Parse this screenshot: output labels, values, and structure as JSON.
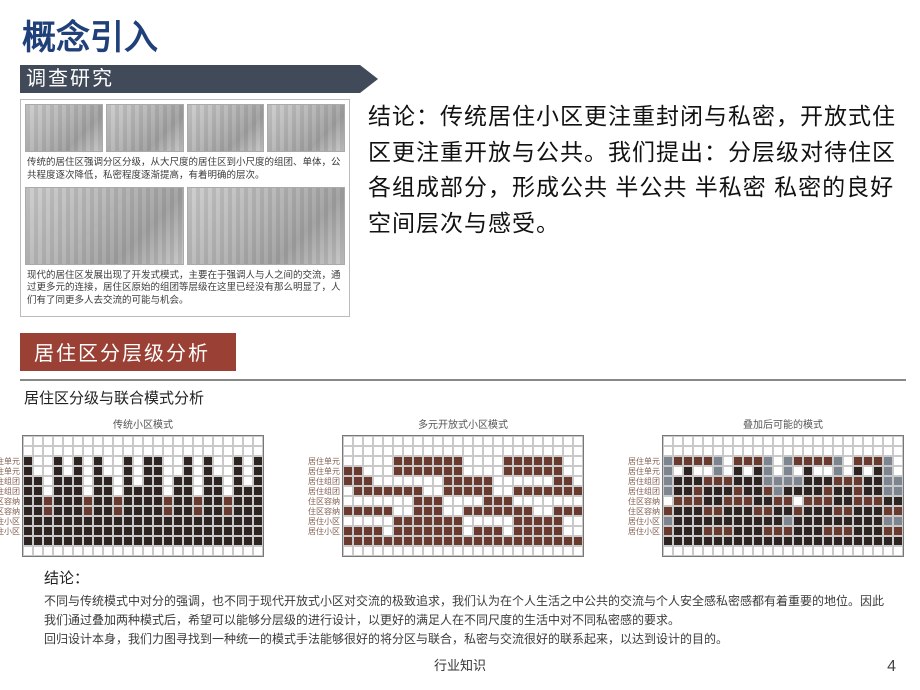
{
  "title": "概念引入",
  "research_label": "调查研究",
  "thumbs": {
    "caption1": "传统的居住区强调分区分级，从大尺度的居住区到小尺度的组团、单体，公共程度逐次降低，私密程度逐渐提高，有着明确的层次。",
    "caption2": "现代的居住区发展出现了开发式模式，主要在于强调人与人之间的交流，通过更多元的连接，居住区原始的组团等层级在这里已经没有那么明显了，人们有了同更多人去交流的可能与机会。"
  },
  "conclusion_text": "结论：传统居住小区更注重封闭与私密，开放式住区更注重开放与公共。我们提出：分层级对待住区各组成部分，形成公共 半公共 半私密 私密的良好空间层次与感受。",
  "section2_label": "居住区分层级分析",
  "analysis_title": "居住区分级与联合模式分析",
  "grid_labels": [
    "传统小区模式",
    "多元开放式小区模式",
    "叠加后可能的模式"
  ],
  "row_tags": [
    "居住单元",
    "居住单元",
    "居住组团",
    "居住组团",
    "住区容纳",
    "住区容纳",
    "居住小区",
    "居住小区"
  ],
  "bottom": {
    "heading": "结论：",
    "p1": "不同与传统模式中对分的强调，也不同于现代开放式小区对交流的极致追求，我们认为在个人生活之中公共的交流与个人安全感私密感都有着重要的地位。因此我们通过叠加两种模式后，希望可以能够分层级的进行设计，以更好的满足人在不同尺度的生活中对不同私密感的要求。",
    "p2": "回归设计本身，我们力图寻找到一种统一的模式手法能够很好的将分区与联合，私密与交流很好的联系起来，以达到设计的目的。"
  },
  "footer_center": "行业知识",
  "page_number": "4",
  "colors": {
    "title": "#20407a",
    "bar1": "#404a59",
    "bar2": "#9a4034",
    "cell_dark": "#2d2320",
    "cell_brown": "#6b3a2e",
    "cell_grey": "#7c8590",
    "cell_light": "#bfc7cf"
  },
  "grid_patterns": {
    "g1": [
      "........................",
      "........................",
      "d..d.d.d..d.dd..d.d..d.d",
      "d..d.d.d..d.dd..d.d..d.d",
      "dd.ddd.dd.d.dd.dd.dd.d.d",
      "dd.ddd.dd.dddd.dd.dd.ddd",
      "ddbdddbddbddddbddbddbddd",
      "ddbdddbddbddddbddbddbddd",
      "dddddddddddddddddddddddd",
      "dddddddddddddddddddddddd",
      "dddddddddddddddddddddddd",
      "........................"
    ],
    "g2": [
      "........................",
      "........................",
      ".....bbbbbbb....bbbbbb..",
      "bb...bbbbbbb....bbbbbb..",
      "bbb.......bbbbb......bb.",
      ".bbbbbbb..bbbbb..bbbbbbb",
      ".......bbb....bbb.......",
      "bbbbb..bbb..bbbbbbb..bbb",
      ".....bbbbbbb.....bbbbb..",
      "bbbb.bbbbbbb.bbb.bbbbb..",
      "bbbbbbbbbbbbbbbbbbbbbbbb",
      "........................"
    ],
    "g3": [
      "........................",
      "........................",
      "gbbbbg.bbbg.gbbbbg.bbbg.",
      "g.d..g.d.dg.g.d..g.d.dg.",
      "gdddbbbdddggggdddbbbddgg",
      "gddbdddbddbgddddbddbddgg",
      ".bbbddbbbddbb.bbbddbbbdd",
      "bdddbbdddbbddbdddbbdddbb",
      "gdddddddddddgdddddddddgg",
      "bdddbbbdddbbbdddbbbdddbb",
      "dddddddddddddddddddddddd",
      "........................"
    ]
  }
}
